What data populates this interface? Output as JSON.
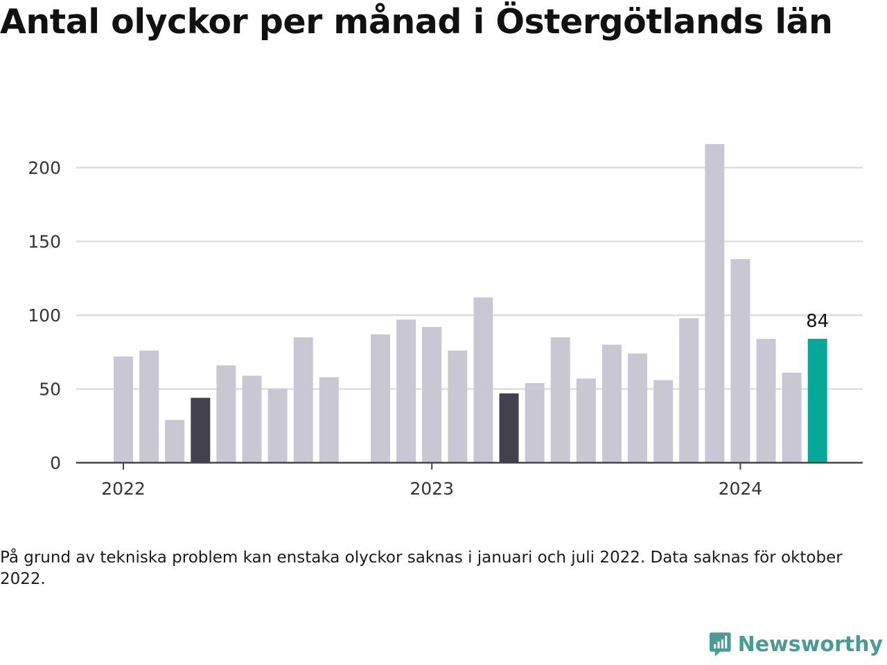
{
  "title": "Antal olyckor per månad i Östergötlands län",
  "note": "På grund av tekniska problem kan enstaka olyckor saknas i januari och juli 2022. Data saknas för oktober 2022.",
  "brand": {
    "name": "Newsworthy",
    "logo_icon": "newsworthy-chart-bubble-icon"
  },
  "colors": {
    "default_bar": "#c8c7d3",
    "highlight_bar": "#43414e",
    "latest_bar": "#07a89a",
    "gridline": "#dddddd",
    "axis": "#444444",
    "tick_label": "#333333",
    "brand": "#4a9a95"
  },
  "chart_data": {
    "type": "bar",
    "title": "Antal olyckor per månad i Östergötlands län",
    "xlabel": "",
    "ylabel": "",
    "ylim": [
      0,
      220
    ],
    "yticks": [
      0,
      50,
      100,
      150,
      200
    ],
    "xtick_labels": [
      "2022",
      "2023",
      "2024"
    ],
    "grid": true,
    "legend": "none",
    "categories": [
      "2022-01",
      "2022-02",
      "2022-03",
      "2022-04",
      "2022-05",
      "2022-06",
      "2022-07",
      "2022-08",
      "2022-09",
      "2022-10",
      "2022-11",
      "2022-12",
      "2023-01",
      "2023-02",
      "2023-03",
      "2023-04",
      "2023-05",
      "2023-06",
      "2023-07",
      "2023-08",
      "2023-09",
      "2023-10",
      "2023-11",
      "2023-12",
      "2024-01",
      "2024-02",
      "2024-03",
      "2024-04"
    ],
    "values": [
      72,
      76,
      29,
      44,
      66,
      59,
      50,
      85,
      58,
      null,
      87,
      97,
      92,
      76,
      112,
      47,
      54,
      85,
      57,
      80,
      74,
      56,
      98,
      216,
      138,
      84,
      61,
      84
    ],
    "highlighted": [
      "2022-04",
      "2023-04"
    ],
    "latest": "2024-04",
    "data_labels": [
      {
        "category": "2024-04",
        "text": "84"
      }
    ]
  }
}
